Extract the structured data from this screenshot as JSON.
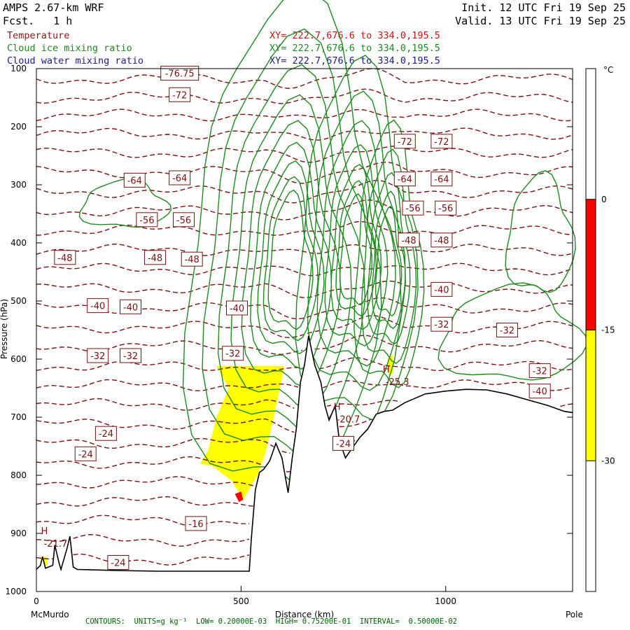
{
  "header": {
    "model": "AMPS 2.67-km WRF",
    "forecast": "Fcst.   1 h",
    "init": "Init. 12 UTC Fri 19 Sep 25",
    "valid": "Valid. 13 UTC Fri 19 Sep 25"
  },
  "legend": [
    {
      "name": "Temperature",
      "xy": "XY= 222.7,676.6 to 334.0,195.5",
      "color": "#8b1a1a"
    },
    {
      "name": "Cloud ice mixing ratio",
      "xy": "XY= 222.7,676.6 to 334.0,195.5",
      "color": "#1e8a1e"
    },
    {
      "name": "Cloud water mixing ratio",
      "xy": "XY= 222.7,676.6 to 334.0,195.5",
      "color": "#1c1c8b"
    }
  ],
  "footer": "CONTOURS:  UNITS=g kg⁻¹  LOW= 0.20000E-03  HIGH= 0.75200E-01  INTERVAL=  0.50000E-02",
  "chart_data": {
    "type": "cross-section",
    "xlabel": "Distance (km)",
    "ylabel": "Pressure (hPa)",
    "xlim": [
      0,
      1310
    ],
    "ylim": [
      100,
      1000
    ],
    "x_ticks": [
      0,
      500,
      1000
    ],
    "y_ticks": [
      100,
      200,
      300,
      400,
      500,
      600,
      700,
      800,
      900,
      1000
    ],
    "x_end_labels": {
      "left": "McMurdo",
      "right": "Pole"
    },
    "colorbar": {
      "unit": "°C",
      "ticks": [
        0,
        -15,
        -30
      ],
      "bands": [
        {
          "from": 15,
          "to": 0,
          "color": "#ffffff"
        },
        {
          "from": 0,
          "to": -15,
          "color": "#ff0000"
        },
        {
          "from": -15,
          "to": -30,
          "color": "#ffff00"
        },
        {
          "from": -30,
          "to": -45,
          "color": "#ffffff"
        }
      ]
    },
    "terrain": [
      [
        0,
        962
      ],
      [
        10,
        955
      ],
      [
        15,
        940
      ],
      [
        22,
        960
      ],
      [
        40,
        955
      ],
      [
        45,
        920
      ],
      [
        55,
        950
      ],
      [
        60,
        962
      ],
      [
        75,
        925
      ],
      [
        82,
        905
      ],
      [
        90,
        958
      ],
      [
        100,
        962
      ],
      [
        200,
        964
      ],
      [
        300,
        965
      ],
      [
        400,
        965
      ],
      [
        520,
        965
      ],
      [
        525,
        910
      ],
      [
        535,
        825
      ],
      [
        545,
        795
      ],
      [
        555,
        790
      ],
      [
        570,
        775
      ],
      [
        585,
        745
      ],
      [
        600,
        770
      ],
      [
        615,
        830
      ],
      [
        625,
        770
      ],
      [
        635,
        720
      ],
      [
        645,
        640
      ],
      [
        655,
        610
      ],
      [
        665,
        560
      ],
      [
        680,
        610
      ],
      [
        695,
        640
      ],
      [
        705,
        680
      ],
      [
        715,
        705
      ],
      [
        730,
        680
      ],
      [
        740,
        740
      ],
      [
        755,
        770
      ],
      [
        770,
        755
      ],
      [
        790,
        735
      ],
      [
        810,
        720
      ],
      [
        830,
        695
      ],
      [
        850,
        690
      ],
      [
        870,
        688
      ],
      [
        900,
        675
      ],
      [
        950,
        660
      ],
      [
        1000,
        655
      ],
      [
        1050,
        652
      ],
      [
        1100,
        653
      ],
      [
        1150,
        660
      ],
      [
        1200,
        670
      ],
      [
        1250,
        680
      ],
      [
        1290,
        690
      ],
      [
        1310,
        692
      ]
    ],
    "temperature_labels": [
      {
        "x": 350,
        "p": 108,
        "label": "-76.75"
      },
      {
        "x": 350,
        "p": 145,
        "label": "-72"
      },
      {
        "x": 900,
        "p": 225,
        "label": "-72"
      },
      {
        "x": 990,
        "p": 225,
        "label": "-72"
      },
      {
        "x": 240,
        "p": 292,
        "label": "-64"
      },
      {
        "x": 350,
        "p": 288,
        "label": "-64"
      },
      {
        "x": 900,
        "p": 290,
        "label": "-64"
      },
      {
        "x": 990,
        "p": 290,
        "label": "-64"
      },
      {
        "x": 270,
        "p": 360,
        "label": "-56"
      },
      {
        "x": 360,
        "p": 360,
        "label": "-56"
      },
      {
        "x": 920,
        "p": 340,
        "label": "-56"
      },
      {
        "x": 1000,
        "p": 340,
        "label": "-56"
      },
      {
        "x": 70,
        "p": 425,
        "label": "-48"
      },
      {
        "x": 290,
        "p": 425,
        "label": "-48"
      },
      {
        "x": 380,
        "p": 428,
        "label": "-48"
      },
      {
        "x": 910,
        "p": 395,
        "label": "-48"
      },
      {
        "x": 990,
        "p": 395,
        "label": "-48"
      },
      {
        "x": 150,
        "p": 508,
        "label": "-40"
      },
      {
        "x": 230,
        "p": 510,
        "label": "-40"
      },
      {
        "x": 490,
        "p": 512,
        "label": "-40"
      },
      {
        "x": 990,
        "p": 480,
        "label": "-40"
      },
      {
        "x": 150,
        "p": 594,
        "label": "-32"
      },
      {
        "x": 230,
        "p": 594,
        "label": "-32"
      },
      {
        "x": 480,
        "p": 590,
        "label": "-32"
      },
      {
        "x": 990,
        "p": 540,
        "label": "-32"
      },
      {
        "x": 1150,
        "p": 550,
        "label": "-32"
      },
      {
        "x": 1230,
        "p": 620,
        "label": "-32"
      },
      {
        "x": 1230,
        "p": 655,
        "label": "-40"
      },
      {
        "x": 170,
        "p": 728,
        "label": "-24"
      },
      {
        "x": 120,
        "p": 763,
        "label": "-24"
      },
      {
        "x": 750,
        "p": 745,
        "label": "-24"
      },
      {
        "x": 200,
        "p": 950,
        "label": "-24"
      },
      {
        "x": 390,
        "p": 883,
        "label": "-16"
      }
    ],
    "highs": [
      {
        "x": 25,
        "p": 906,
        "mark": "H",
        "value": "-21.7"
      },
      {
        "x": 740,
        "p": 692,
        "mark": "H",
        "value": "-20.7"
      },
      {
        "x": 860,
        "p": 628,
        "mark": "H",
        "value": "-25.3"
      }
    ]
  }
}
